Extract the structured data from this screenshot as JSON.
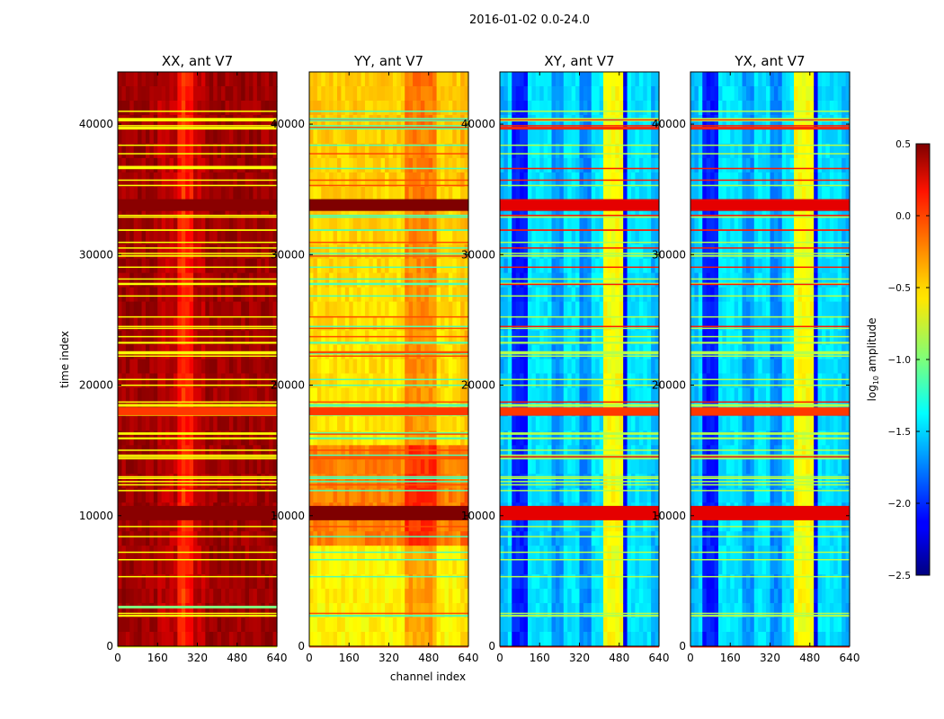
{
  "figure": {
    "suptitle": "2016-01-02 0.0-24.0",
    "xlabel": "channel index",
    "ylabel": "time index"
  },
  "chart_data": {
    "type": "heatmap",
    "colormap": "jet",
    "title": "2016-01-02 0.0-24.0",
    "xlabel": "channel index",
    "ylabel": "time index",
    "xlim": [
      0,
      640
    ],
    "ylim": [
      0,
      44000
    ],
    "x_ticks": [
      "0",
      "160",
      "320",
      "480",
      "640"
    ],
    "y_ticks": [
      "0",
      "10000",
      "20000",
      "30000",
      "40000"
    ],
    "panels": [
      {
        "title": "XX, ant V7",
        "polarization": "XX",
        "antenna": "V7"
      },
      {
        "title": "YY, ant V7",
        "polarization": "YY",
        "antenna": "V7"
      },
      {
        "title": "XY, ant V7",
        "polarization": "XY",
        "antenna": "V7"
      },
      {
        "title": "YX, ant V7",
        "polarization": "YX",
        "antenna": "V7"
      }
    ],
    "colorbar": {
      "label": "log10 amplitude",
      "label_main": "log",
      "label_sub": "10",
      "label_rest": " amplitude",
      "range": [
        -2.5,
        0.5
      ],
      "ticks": [
        "0.5",
        "0.0",
        "−0.5",
        "−1.0",
        "−1.5",
        "−2.0",
        "−2.5"
      ]
    }
  }
}
